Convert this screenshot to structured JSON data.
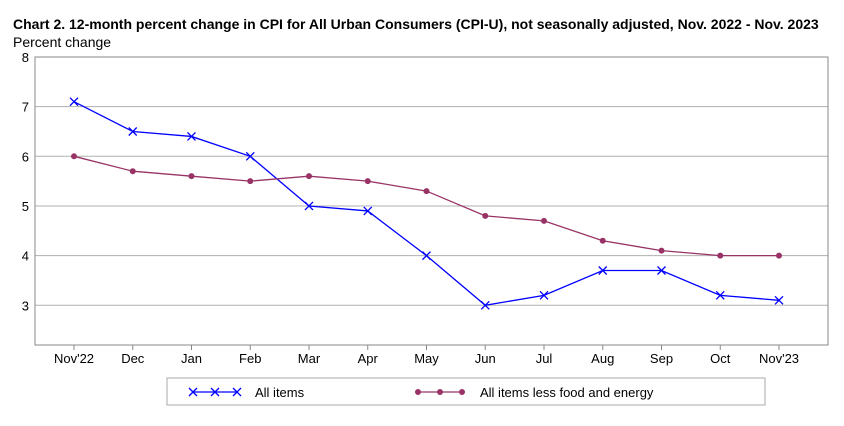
{
  "chart_data": {
    "type": "line",
    "title": "Chart 2. 12-month percent change in CPI for All Urban Consumers (CPI-U), not seasonally adjusted, Nov. 2022 - Nov. 2023",
    "ylabel": "Percent change",
    "xlabel": "",
    "categories": [
      "Nov'22",
      "Dec",
      "Jan",
      "Feb",
      "Mar",
      "Apr",
      "May",
      "Jun",
      "Jul",
      "Aug",
      "Sep",
      "Oct",
      "Nov'23"
    ],
    "yticks": [
      3,
      4,
      5,
      6,
      7,
      8
    ],
    "ylim": [
      2.2,
      8
    ],
    "grid": true,
    "legend_position": "bottom",
    "series": [
      {
        "name": "All items",
        "color": "#0000ff",
        "marker": "x",
        "values": [
          7.1,
          6.5,
          6.4,
          6.0,
          5.0,
          4.9,
          4.0,
          3.0,
          3.2,
          3.7,
          3.7,
          3.2,
          3.1
        ]
      },
      {
        "name": "All items less food and energy",
        "color": "#993366",
        "marker": "circle",
        "values": [
          6.0,
          5.7,
          5.6,
          5.5,
          5.6,
          5.5,
          5.3,
          4.8,
          4.7,
          4.3,
          4.1,
          4.0,
          4.0
        ]
      }
    ]
  }
}
